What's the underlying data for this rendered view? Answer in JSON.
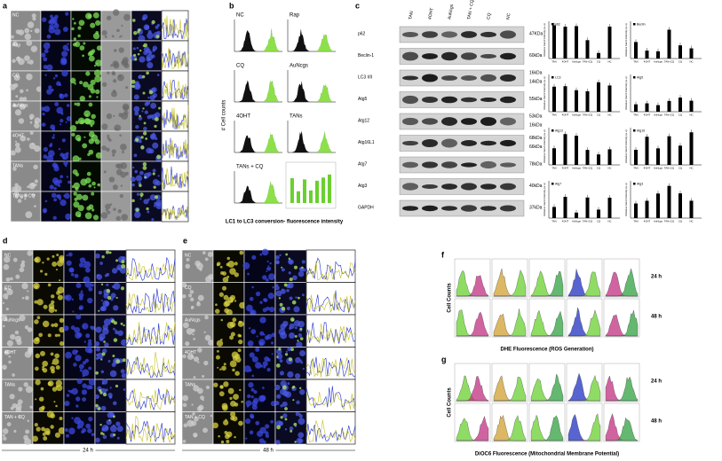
{
  "panels": {
    "a": {
      "label": "a",
      "rows": [
        "NC",
        "Rap",
        "CQ",
        "AuNcgs",
        "4OHT",
        "TANs",
        "TANs + CQ"
      ]
    },
    "b": {
      "label": "b",
      "histograms": [
        "NC",
        "Rap",
        "CQ",
        "AuNcgs",
        "4OHT",
        "TANs",
        "TANs + CQ"
      ],
      "y_label": "# Cell counts",
      "x_label": "LC1 to LC3 conversion- fluorescence intensity"
    },
    "c": {
      "label": "c",
      "lanes": [
        "TAN",
        "4OHT",
        "AuNcgs",
        "TAN + CQ",
        "CQ",
        "NC"
      ],
      "blots": [
        {
          "name": "p62",
          "sizes": [
            "47KDa"
          ]
        },
        {
          "name": "Beclin-1",
          "sizes": [
            "60kDa"
          ]
        },
        {
          "name": "LC3 I/II",
          "sizes": [
            "16kDa",
            "14kDa"
          ]
        },
        {
          "name": "Atg5",
          "sizes": [
            "55kDa"
          ]
        },
        {
          "name": "Atg12",
          "sizes": [
            "53kDa",
            "16kDa"
          ]
        },
        {
          "name": "Atg16L1",
          "sizes": [
            "68kDa",
            "66kDa"
          ]
        },
        {
          "name": "Atg7",
          "sizes": [
            "78kDa"
          ]
        },
        {
          "name": "Atg3",
          "sizes": [
            "40kDa"
          ]
        },
        {
          "name": "GAPDH",
          "sizes": [
            "37kDa"
          ]
        }
      ],
      "graphs": [
        "p62",
        "Beclin",
        "LC3",
        "Atg5",
        "Atg12",
        "Atg16",
        "Atg7",
        "Atg3"
      ],
      "graph_axis": "Relative band intensity (a.u)",
      "graph_categories": [
        "TAN",
        "4OHT",
        "AuNcgs",
        "TAN+CQ",
        "CQ",
        "NC"
      ]
    },
    "d": {
      "label": "d",
      "rows": [
        "NC",
        "CQ",
        "AuNcgs",
        "4OHT",
        "TANs",
        "TAN + CQ"
      ],
      "time": "24 h"
    },
    "e": {
      "label": "e",
      "rows": [
        "NC",
        "CQ",
        "AuNcgs",
        "4OHT",
        "TANs",
        "TAN + CQ"
      ],
      "time": "48 h"
    },
    "f": {
      "label": "f",
      "times": [
        "24 h",
        "48 h"
      ],
      "y_label": "Cell Counts",
      "x_label": "DHE Fluorescence (ROS Generation)"
    },
    "g": {
      "label": "g",
      "times": [
        "24 h",
        "48 h"
      ],
      "y_label": "Cell Counts",
      "x_label": "DiOC6 Fluorescence (Mitochondrial Membrane Potential)"
    }
  }
}
